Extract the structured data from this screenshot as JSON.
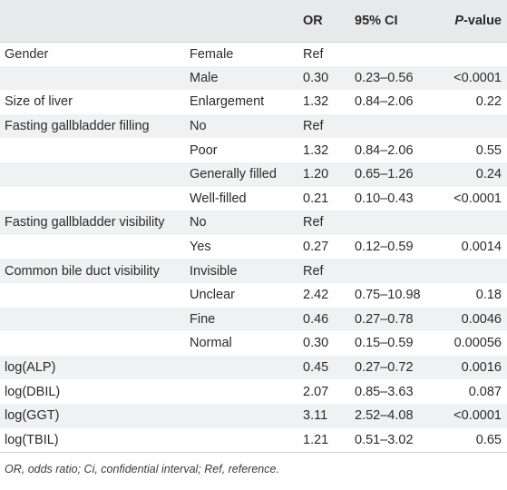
{
  "header": {
    "col_or": "OR",
    "col_ci": "95% CI",
    "col_p_italic": "P",
    "col_p_rest": "-value"
  },
  "rows": [
    {
      "variable": "Gender",
      "level": "Female",
      "or": "Ref",
      "ci": "",
      "p": ""
    },
    {
      "variable": "",
      "level": "Male",
      "or": "0.30",
      "ci": "0.23–0.56",
      "p": "<0.0001"
    },
    {
      "variable": "Size of liver",
      "level": "Enlargement",
      "or": "1.32",
      "ci": "0.84–2.06",
      "p": "0.22"
    },
    {
      "variable": "Fasting gallbladder filling",
      "level": "No",
      "or": "Ref",
      "ci": "",
      "p": ""
    },
    {
      "variable": "",
      "level": "Poor",
      "or": "1.32",
      "ci": "0.84–2.06",
      "p": "0.55"
    },
    {
      "variable": "",
      "level": "Generally filled",
      "or": "1.20",
      "ci": "0.65–1.26",
      "p": "0.24"
    },
    {
      "variable": "",
      "level": "Well-filled",
      "or": "0.21",
      "ci": "0.10–0.43",
      "p": "<0.0001"
    },
    {
      "variable": "Fasting gallbladder visibility",
      "level": "No",
      "or": "Ref",
      "ci": "",
      "p": ""
    },
    {
      "variable": "",
      "level": "Yes",
      "or": "0.27",
      "ci": "0.12–0.59",
      "p": "0.0014"
    },
    {
      "variable": "Common bile duct visibility",
      "level": "Invisible",
      "or": "Ref",
      "ci": "",
      "p": ""
    },
    {
      "variable": "",
      "level": "Unclear",
      "or": "2.42",
      "ci": "0.75–10.98",
      "p": "0.18"
    },
    {
      "variable": "",
      "level": "Fine",
      "or": "0.46",
      "ci": "0.27–0.78",
      "p": "0.0046"
    },
    {
      "variable": "",
      "level": "Normal",
      "or": "0.30",
      "ci": "0.15–0.59",
      "p": "0.00056"
    },
    {
      "variable": "log(ALP)",
      "level": "",
      "or": "0.45",
      "ci": "0.27–0.72",
      "p": "0.0016"
    },
    {
      "variable": "log(DBIL)",
      "level": "",
      "or": "2.07",
      "ci": "0.85–3.63",
      "p": "0.087"
    },
    {
      "variable": "log(GGT)",
      "level": "",
      "or": "3.11",
      "ci": "2.52–4.08",
      "p": "<0.0001"
    },
    {
      "variable": "log(TBIL)",
      "level": "",
      "or": "1.21",
      "ci": "0.51–3.02",
      "p": "0.65"
    }
  ],
  "footnote": "OR, odds ratio; Ci, confidential interval; Ref, reference.",
  "colors": {
    "header_bg": "#e8e9eb",
    "stripe_bg": "#f0f1f2",
    "text": "#2b2b2b"
  }
}
